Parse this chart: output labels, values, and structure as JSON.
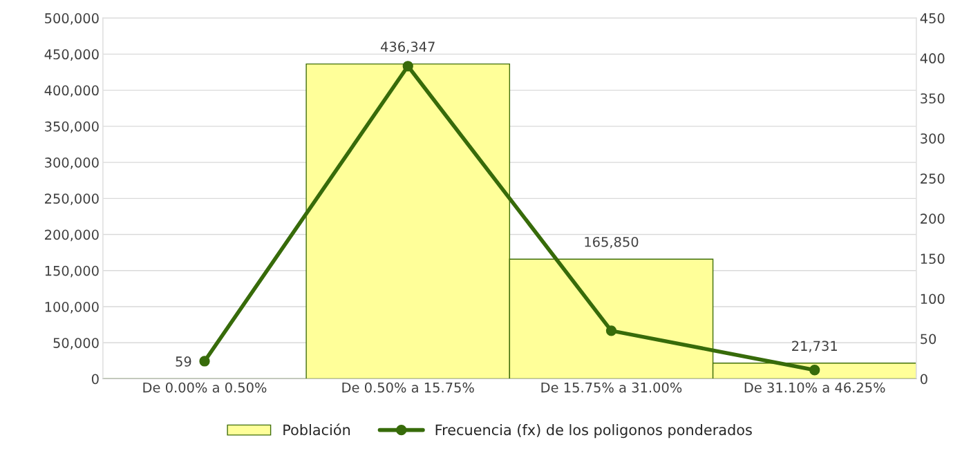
{
  "chart_data": {
    "type": "bar",
    "categories": [
      "De 0.00% a 0.50%",
      "De 0.50% a 15.75%",
      "De 15.75% a 31.00%",
      "De 31.10% a 46.25%"
    ],
    "series": [
      {
        "name": "Población",
        "color": "#ffff99",
        "values": [
          59,
          436347,
          165850,
          21731
        ],
        "value_labels": [
          "59",
          "436,347",
          "165,850",
          "21,731"
        ]
      },
      {
        "name": "Frecuencia (fx) de los poligonos ponderados",
        "type": "line",
        "axis": "y2",
        "color": "#376b0a",
        "values": [
          22,
          390,
          60,
          11
        ],
        "marker": "circle",
        "line_style": "solid"
      }
    ],
    "ylim": [
      0,
      500000
    ],
    "yticks": [
      {
        "value": 0,
        "label": "0"
      },
      {
        "value": 50000,
        "label": "50,000"
      },
      {
        "value": 100000,
        "label": "100,000"
      },
      {
        "value": 150000,
        "label": "150,000"
      },
      {
        "value": 200000,
        "label": "200,000"
      },
      {
        "value": 250000,
        "label": "250,000"
      },
      {
        "value": 300000,
        "label": "300,000"
      },
      {
        "value": 350000,
        "label": "350,000"
      },
      {
        "value": 400000,
        "label": "400,000"
      },
      {
        "value": 450000,
        "label": "450,000"
      },
      {
        "value": 500000,
        "label": "500,000"
      }
    ],
    "y2lim": [
      0,
      450
    ],
    "y2ticks": [
      0,
      50,
      100,
      150,
      200,
      250,
      300,
      350,
      400,
      450
    ],
    "grid": "y",
    "legend": "bottom"
  }
}
